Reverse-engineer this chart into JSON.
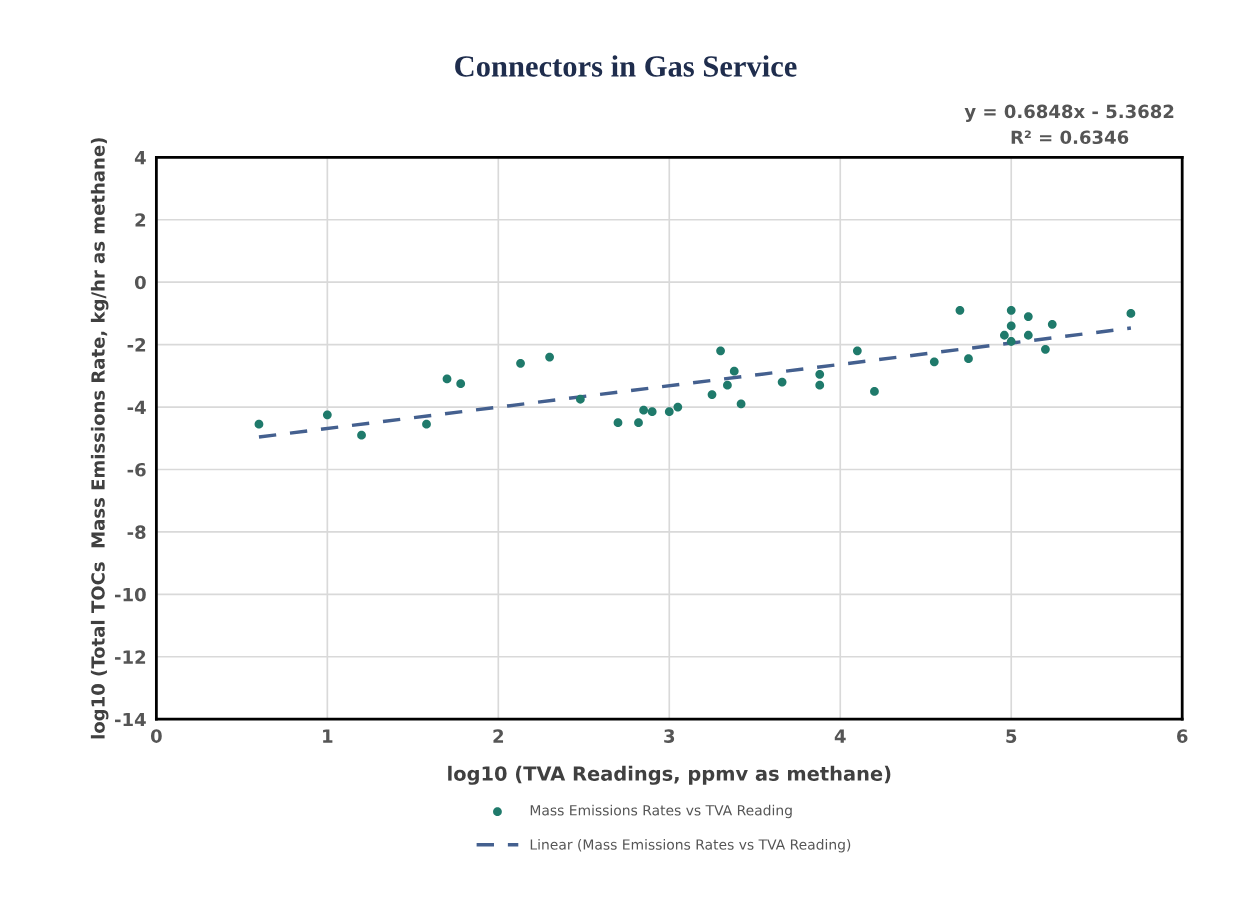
{
  "chart_data": {
    "type": "scatter",
    "title": "Connectors in Gas Service",
    "xlabel": "log10 (TVA Readings, ppmv as methane)",
    "ylabel": "log10 (Total TOCs  Mass Emissions Rate, kg/hr as methane)",
    "annotations": [
      "y = 0.6848x - 5.3682\nR² = 0.6346"
    ],
    "xlim": [
      0,
      6
    ],
    "xticks": [
      0,
      1,
      2,
      3,
      4,
      5,
      6
    ],
    "ylim": [
      -14,
      4
    ],
    "yticks": [
      -14,
      -12,
      -10,
      -8,
      -6,
      -4,
      -2,
      0,
      2,
      4
    ],
    "grid": true,
    "legend": "bottom",
    "series": [
      {
        "name": "Mass Emissions Rates vs TVA Reading",
        "marker": "circle",
        "color": "#1f7a6b",
        "x": [
          0.6,
          1.0,
          1.2,
          1.58,
          1.7,
          1.78,
          2.13,
          2.3,
          2.48,
          2.7,
          2.82,
          2.85,
          2.9,
          3.0,
          3.05,
          3.25,
          3.3,
          3.34,
          3.38,
          3.42,
          3.66,
          3.88,
          3.88,
          4.1,
          4.2,
          4.55,
          4.7,
          4.75,
          4.96,
          5.0,
          5.0,
          5.0,
          5.1,
          5.1,
          5.2,
          5.24,
          5.7
        ],
        "values": [
          -4.55,
          -4.25,
          -4.9,
          -4.55,
          -3.1,
          -3.25,
          -2.6,
          -2.4,
          -3.75,
          -4.5,
          -4.5,
          -4.1,
          -4.15,
          -4.15,
          -4.0,
          -3.6,
          -2.2,
          -3.3,
          -2.85,
          -3.9,
          -3.2,
          -2.95,
          -3.3,
          -2.2,
          -3.5,
          -2.55,
          -0.9,
          -2.45,
          -1.7,
          -0.9,
          -1.4,
          -1.9,
          -1.1,
          -1.7,
          -2.15,
          -1.35,
          -1.0
        ]
      },
      {
        "name": "Linear (Mass Emissions Rates vs TVA Reading)",
        "type": "line",
        "line_style": "dashed",
        "color": "#44608f",
        "x": [
          0.6,
          5.7
        ],
        "values": [
          -4.96,
          -1.47
        ]
      }
    ]
  }
}
